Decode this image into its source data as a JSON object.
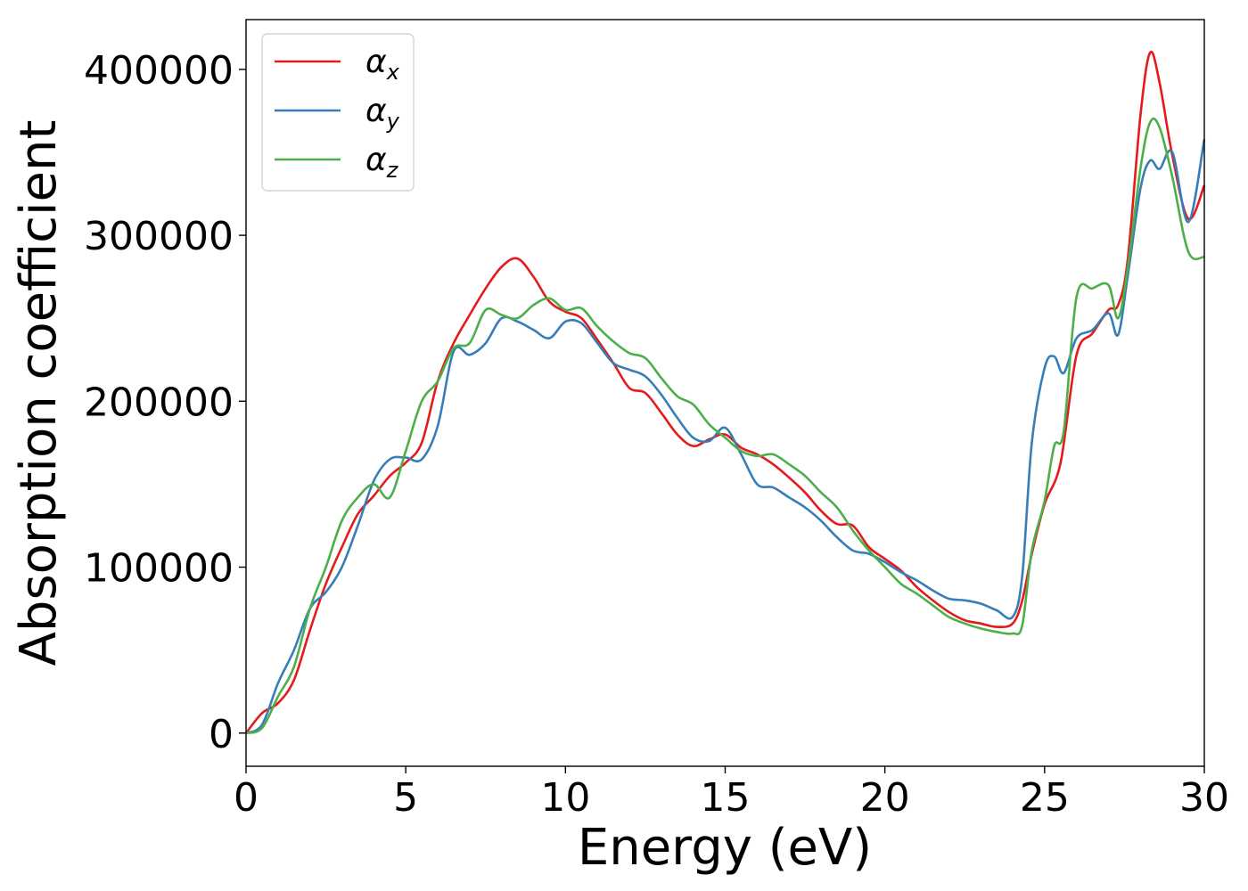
{
  "chart_data": {
    "type": "line",
    "title": "",
    "xlabel": "Energy (eV)",
    "ylabel": "Absorption coefficient",
    "xlim": [
      0,
      30
    ],
    "ylim": [
      -20000,
      430000
    ],
    "xticks": [
      0,
      5,
      10,
      15,
      20,
      25,
      30
    ],
    "xtick_labels": [
      "0",
      "5",
      "10",
      "15",
      "20",
      "25",
      "30"
    ],
    "yticks": [
      0,
      100000,
      200000,
      300000,
      400000
    ],
    "ytick_labels": [
      "0",
      "100000",
      "200000",
      "300000",
      "400000"
    ],
    "grid": false,
    "legend_position": "top-left",
    "series": [
      {
        "name": "α_x",
        "symbol": "α",
        "subscript": "x",
        "color": "#e41a1c",
        "x": [
          0,
          0.5,
          1,
          1.5,
          2,
          2.5,
          3,
          3.5,
          4,
          4.5,
          5,
          5.5,
          6,
          6.5,
          7,
          7.5,
          8,
          8.5,
          9,
          9.5,
          10,
          10.5,
          11,
          11.5,
          12,
          12.5,
          13,
          13.5,
          14,
          14.5,
          15,
          15.5,
          16,
          16.5,
          17,
          17.5,
          18,
          18.5,
          19,
          19.5,
          20,
          20.5,
          21,
          21.5,
          22,
          22.5,
          23,
          23.5,
          24,
          24.3,
          24.6,
          25,
          25.5,
          26,
          26.5,
          27,
          27.3,
          27.6,
          28,
          28.3,
          28.6,
          29,
          29.5,
          30
        ],
        "y": [
          0,
          12000,
          18000,
          32000,
          62000,
          90000,
          112000,
          132000,
          143000,
          155000,
          163000,
          175000,
          212000,
          235000,
          252000,
          268000,
          281000,
          286000,
          275000,
          260000,
          254000,
          250000,
          237000,
          223000,
          208000,
          205000,
          193000,
          180000,
          173000,
          177000,
          180000,
          172000,
          168000,
          162000,
          154000,
          145000,
          134000,
          126000,
          125000,
          112000,
          105000,
          98000,
          88000,
          80000,
          73000,
          68000,
          66000,
          64000,
          66000,
          80000,
          108000,
          138000,
          163000,
          228000,
          241000,
          255000,
          258000,
          285000,
          372000,
          410000,
          392000,
          348000,
          310000,
          330000
        ]
      },
      {
        "name": "α_y",
        "symbol": "α",
        "subscript": "y",
        "color": "#377eb8",
        "x": [
          0,
          0.5,
          1,
          1.5,
          2,
          2.5,
          3,
          3.5,
          4,
          4.5,
          5,
          5.5,
          6,
          6.5,
          7,
          7.5,
          8,
          8.5,
          9,
          9.5,
          10,
          10.5,
          11,
          11.5,
          12,
          12.5,
          13,
          13.5,
          14,
          14.5,
          15,
          15.5,
          16,
          16.5,
          17,
          17.5,
          18,
          18.5,
          19,
          19.5,
          20,
          20.5,
          21,
          21.5,
          22,
          22.5,
          23,
          23.5,
          24,
          24.3,
          24.6,
          25,
          25.3,
          25.6,
          26,
          26.5,
          27,
          27.3,
          27.6,
          28,
          28.3,
          28.6,
          29,
          29.5,
          30
        ],
        "y": [
          0,
          5000,
          30000,
          50000,
          75000,
          85000,
          100000,
          125000,
          152000,
          165000,
          166000,
          165000,
          185000,
          230000,
          228000,
          235000,
          250000,
          248000,
          243000,
          238000,
          248000,
          247000,
          235000,
          223000,
          219000,
          215000,
          204000,
          190000,
          178000,
          176000,
          184000,
          168000,
          150000,
          148000,
          142000,
          136000,
          128000,
          118000,
          110000,
          108000,
          103000,
          97000,
          92000,
          86000,
          81000,
          80000,
          78000,
          74000,
          70000,
          95000,
          175000,
          220000,
          227000,
          217000,
          238000,
          243000,
          253000,
          240000,
          275000,
          328000,
          345000,
          340000,
          350000,
          308000,
          358000
        ]
      },
      {
        "name": "α_z",
        "symbol": "α",
        "subscript": "z",
        "color": "#4daf4a",
        "x": [
          0,
          0.5,
          1,
          1.5,
          2,
          2.5,
          3,
          3.5,
          4,
          4.5,
          5,
          5.5,
          6,
          6.5,
          7,
          7.5,
          8,
          8.5,
          9,
          9.5,
          10,
          10.5,
          11,
          11.5,
          12,
          12.5,
          13,
          13.5,
          14,
          14.5,
          15,
          15.5,
          16,
          16.5,
          17,
          17.5,
          18,
          18.5,
          19,
          19.5,
          20,
          20.5,
          21,
          21.5,
          22,
          22.5,
          23,
          23.5,
          24,
          24.3,
          24.6,
          25,
          25.3,
          25.6,
          26,
          26.5,
          27,
          27.3,
          27.6,
          28,
          28.3,
          28.6,
          29,
          29.5,
          30
        ],
        "y": [
          0,
          3000,
          22000,
          40000,
          75000,
          100000,
          128000,
          142000,
          150000,
          142000,
          170000,
          200000,
          212000,
          232000,
          235000,
          255000,
          252000,
          250000,
          258000,
          262000,
          255000,
          256000,
          245000,
          236000,
          229000,
          226000,
          214000,
          203000,
          198000,
          186000,
          178000,
          170000,
          167000,
          168000,
          162000,
          155000,
          145000,
          136000,
          122000,
          110000,
          100000,
          90000,
          84000,
          77000,
          70000,
          66000,
          63000,
          61000,
          60000,
          65000,
          110000,
          140000,
          173000,
          182000,
          263000,
          268000,
          270000,
          250000,
          280000,
          340000,
          368000,
          365000,
          335000,
          290000,
          287000
        ]
      }
    ]
  }
}
